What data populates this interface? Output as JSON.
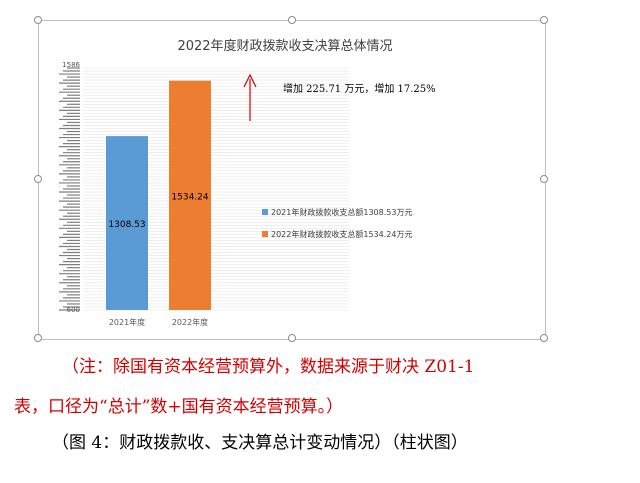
{
  "colors": {
    "bar_2021": "#5b9bd5",
    "bar_2022": "#ed7d31",
    "annotation_arrow": "#d40000",
    "note_text": "#d40000"
  },
  "chart_data": {
    "type": "bar",
    "title": "2022年度财政拨款收支决算总体情况",
    "categories": [
      "2021年度",
      "2022年度"
    ],
    "values": [
      1308.53,
      1534.24
    ],
    "ylim": [
      600,
      1586
    ],
    "data_labels": [
      "1308.53",
      "1534.24"
    ],
    "legend": [
      "2021年财政拨款收支总额1308.53万元",
      "2022年财政拨款收支总额1534.24万元"
    ],
    "legend_position": "right",
    "grid": true,
    "annotation": "增加 225.71 万元，增加 17.25%",
    "ytick_min_label": "600",
    "ytick_max_label": "1586"
  },
  "notes": {
    "line1": "（注：除国有资本经营预算外，数据来源于财决 Z01-1",
    "line2": "表，口径为“总计”数+国有资本经营预算。）",
    "caption": "（图 4：财政拨款收、支决算总计变动情况）（柱状图）"
  }
}
